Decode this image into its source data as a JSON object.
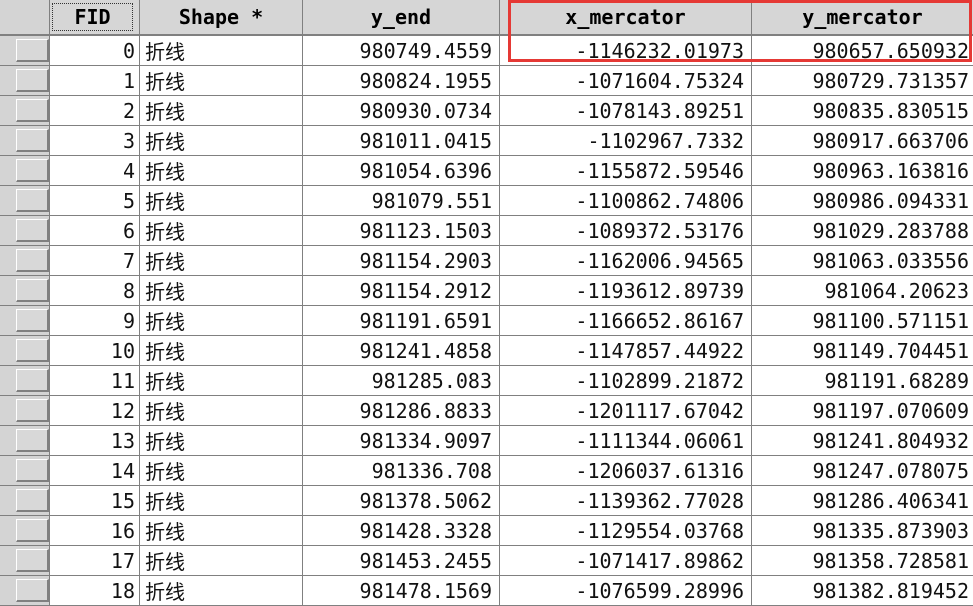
{
  "columns": {
    "fid": "FID",
    "shape": "Shape *",
    "y_end": "y_end",
    "x_mercator": "x_mercator",
    "y_mercator": "y_mercator"
  },
  "highlight_color": "#e53935",
  "rows": [
    {
      "fid": "0",
      "shape": "折线",
      "y_end": "980749.4559",
      "x_mercator": "-1146232.01973",
      "y_mercator": "980657.650932"
    },
    {
      "fid": "1",
      "shape": "折线",
      "y_end": "980824.1955",
      "x_mercator": "-1071604.75324",
      "y_mercator": "980729.731357"
    },
    {
      "fid": "2",
      "shape": "折线",
      "y_end": "980930.0734",
      "x_mercator": "-1078143.89251",
      "y_mercator": "980835.830515"
    },
    {
      "fid": "3",
      "shape": "折线",
      "y_end": "981011.0415",
      "x_mercator": "-1102967.7332",
      "y_mercator": "980917.663706"
    },
    {
      "fid": "4",
      "shape": "折线",
      "y_end": "981054.6396",
      "x_mercator": "-1155872.59546",
      "y_mercator": "980963.163816"
    },
    {
      "fid": "5",
      "shape": "折线",
      "y_end": "981079.551",
      "x_mercator": "-1100862.74806",
      "y_mercator": "980986.094331"
    },
    {
      "fid": "6",
      "shape": "折线",
      "y_end": "981123.1503",
      "x_mercator": "-1089372.53176",
      "y_mercator": "981029.283788"
    },
    {
      "fid": "7",
      "shape": "折线",
      "y_end": "981154.2903",
      "x_mercator": "-1162006.94565",
      "y_mercator": "981063.033556"
    },
    {
      "fid": "8",
      "shape": "折线",
      "y_end": "981154.2912",
      "x_mercator": "-1193612.89739",
      "y_mercator": "981064.20623"
    },
    {
      "fid": "9",
      "shape": "折线",
      "y_end": "981191.6591",
      "x_mercator": "-1166652.86167",
      "y_mercator": "981100.571151"
    },
    {
      "fid": "10",
      "shape": "折线",
      "y_end": "981241.4858",
      "x_mercator": "-1147857.44922",
      "y_mercator": "981149.704451"
    },
    {
      "fid": "11",
      "shape": "折线",
      "y_end": "981285.083",
      "x_mercator": "-1102899.21872",
      "y_mercator": "981191.68289"
    },
    {
      "fid": "12",
      "shape": "折线",
      "y_end": "981286.8833",
      "x_mercator": "-1201117.67042",
      "y_mercator": "981197.070609"
    },
    {
      "fid": "13",
      "shape": "折线",
      "y_end": "981334.9097",
      "x_mercator": "-1111344.06061",
      "y_mercator": "981241.804932"
    },
    {
      "fid": "14",
      "shape": "折线",
      "y_end": "981336.708",
      "x_mercator": "-1206037.61316",
      "y_mercator": "981247.078075"
    },
    {
      "fid": "15",
      "shape": "折线",
      "y_end": "981378.5062",
      "x_mercator": "-1139362.77028",
      "y_mercator": "981286.406341"
    },
    {
      "fid": "16",
      "shape": "折线",
      "y_end": "981428.3328",
      "x_mercator": "-1129554.03768",
      "y_mercator": "981335.873903"
    },
    {
      "fid": "17",
      "shape": "折线",
      "y_end": "981453.2455",
      "x_mercator": "-1071417.89862",
      "y_mercator": "981358.728581"
    },
    {
      "fid": "18",
      "shape": "折线",
      "y_end": "981478.1569",
      "x_mercator": "-1076599.28996",
      "y_mercator": "981382.819452"
    }
  ]
}
